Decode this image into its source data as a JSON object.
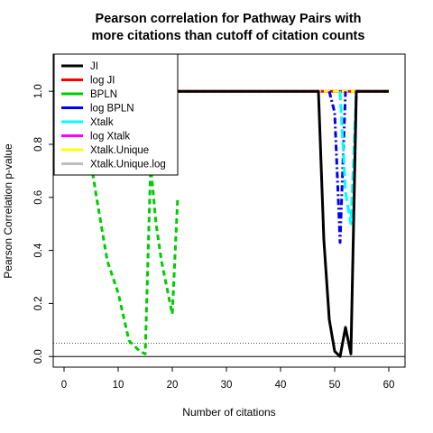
{
  "chart_data": {
    "type": "line",
    "title": [
      "Pearson correlation for Pathway Pairs with",
      "more citations than cutoff of citation counts"
    ],
    "xlabel": "Number of citations",
    "ylabel": "Pearson Correlation p-value",
    "xlim": [
      -2,
      63
    ],
    "ylim": [
      -0.04,
      1.14
    ],
    "xticks": [
      0,
      10,
      20,
      30,
      40,
      50,
      60
    ],
    "yticks": [
      0.0,
      0.2,
      0.4,
      0.6,
      0.8,
      1.0
    ],
    "ytick_labels": [
      "0.0",
      "0.2",
      "0.4",
      "0.6",
      "0.8",
      "1.0"
    ],
    "reference_lines": [
      {
        "y": 0.05,
        "style": "dotted",
        "color": "#555555"
      },
      {
        "y": 0.0,
        "style": "solid",
        "color": "#000000"
      }
    ],
    "legend_position": "top-left",
    "series": [
      {
        "name": "JI",
        "color": "#000000",
        "dash": "solid",
        "x": [
          3,
          10,
          20,
          30,
          40,
          46,
          47,
          48,
          49,
          50,
          51,
          52,
          53,
          54,
          55,
          60
        ],
        "y": [
          1.0,
          1.0,
          1.0,
          1.0,
          1.0,
          1.0,
          1.0,
          0.44,
          0.14,
          0.02,
          0.0,
          0.11,
          0.01,
          1.0,
          1.0,
          1.0
        ]
      },
      {
        "name": "log JI",
        "color": "#ff0000",
        "dash": "solid",
        "x": [
          3,
          60
        ],
        "y": [
          1.0,
          1.0
        ]
      },
      {
        "name": "BPLN",
        "color": "#00cc00",
        "dash": "dashed",
        "x": [
          4,
          5,
          6,
          7,
          8,
          9,
          10,
          11,
          12,
          13,
          14,
          15,
          16,
          17,
          18,
          19,
          20,
          21
        ],
        "y": [
          0.86,
          0.73,
          0.6,
          0.48,
          0.36,
          0.3,
          0.24,
          0.15,
          0.06,
          0.04,
          0.02,
          0.01,
          0.72,
          0.5,
          0.36,
          0.26,
          0.16,
          0.6
        ]
      },
      {
        "name": "log BPLN",
        "color": "#0000ee",
        "dash": "dashdot",
        "x": [
          49,
          50,
          51,
          52
        ],
        "y": [
          1.0,
          0.92,
          0.43,
          1.0
        ]
      },
      {
        "name": "Xtalk",
        "color": "#00ffff",
        "dash": "longdash",
        "x": [
          51,
          52,
          53,
          54
        ],
        "y": [
          1.0,
          0.62,
          0.5,
          1.0
        ]
      },
      {
        "name": "log Xtalk",
        "color": "#ff00ff",
        "dash": "dashed",
        "x": [
          3,
          60
        ],
        "y": [
          1.0,
          1.0
        ]
      },
      {
        "name": "Xtalk.Unique",
        "color": "#ffff00",
        "dash": "dashed",
        "x": [
          3,
          60
        ],
        "y": [
          1.0,
          1.0
        ]
      },
      {
        "name": "Xtalk.Unique.log",
        "color": "#bebebe",
        "dash": "dotted",
        "x": [
          3,
          60
        ],
        "y": [
          1.0,
          1.0
        ]
      }
    ]
  }
}
